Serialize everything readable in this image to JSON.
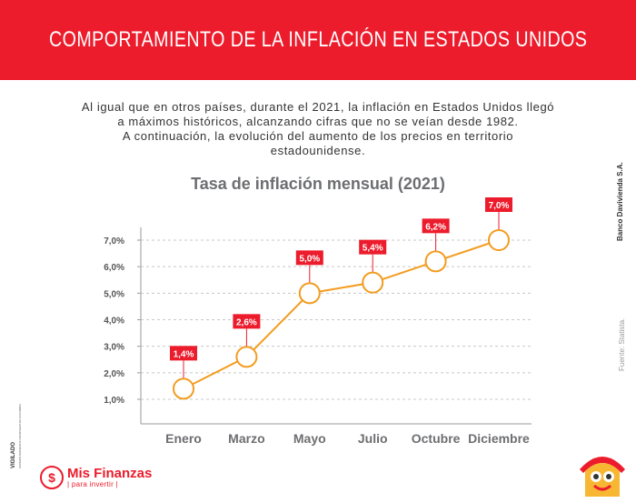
{
  "header": {
    "title": "COMPORTAMIENTO DE LA INFLACIÓN EN ESTADOS UNIDOS"
  },
  "intro": {
    "line1": "Al igual que en otros países, durante el 2021, la inflación en Estados Unidos llegó",
    "line2": "a máximos históricos, alcanzando cifras que no se veían desde 1982.",
    "line3": "A continuación, la evolución del aumento de los precios en territorio",
    "line4": "estadounidense."
  },
  "side": {
    "bank": "Banco Davivienda S.A.",
    "source": "Fuente: Statista."
  },
  "footer": {
    "vigilado": "VIGILADO",
    "vigilado_sub": "SUPERINTENDENCIA FINANCIERA DE COLOMBIA",
    "brand_name": "Mis Finanzas",
    "brand_tag": "| para invertir |",
    "brand_symbol": "$"
  },
  "colors": {
    "accent": "#ec1c2c",
    "line": "#f39c1f",
    "text": "#333333"
  },
  "chart_data": {
    "type": "line",
    "title": "Tasa de inflación mensual (2021)",
    "categories": [
      "Enero",
      "Marzo",
      "Mayo",
      "Julio",
      "Octubre",
      "Diciembre"
    ],
    "values": [
      1.4,
      2.6,
      5.0,
      5.4,
      6.2,
      7.0
    ],
    "data_labels": [
      "1,4%",
      "2,6%",
      "5,0%",
      "5,4%",
      "6,2%",
      "7,0%"
    ],
    "y_ticks": [
      1,
      2,
      3,
      4,
      5,
      6,
      7
    ],
    "y_tick_labels": [
      "1,0%",
      "2,0%",
      "3,0%",
      "4,0%",
      "5,0%",
      "6,0%",
      "7,0%"
    ],
    "ylim": [
      0.6,
      7.0
    ],
    "grid": true,
    "grid_style": "dashed horizontal",
    "xlabel": "",
    "ylabel": ""
  }
}
